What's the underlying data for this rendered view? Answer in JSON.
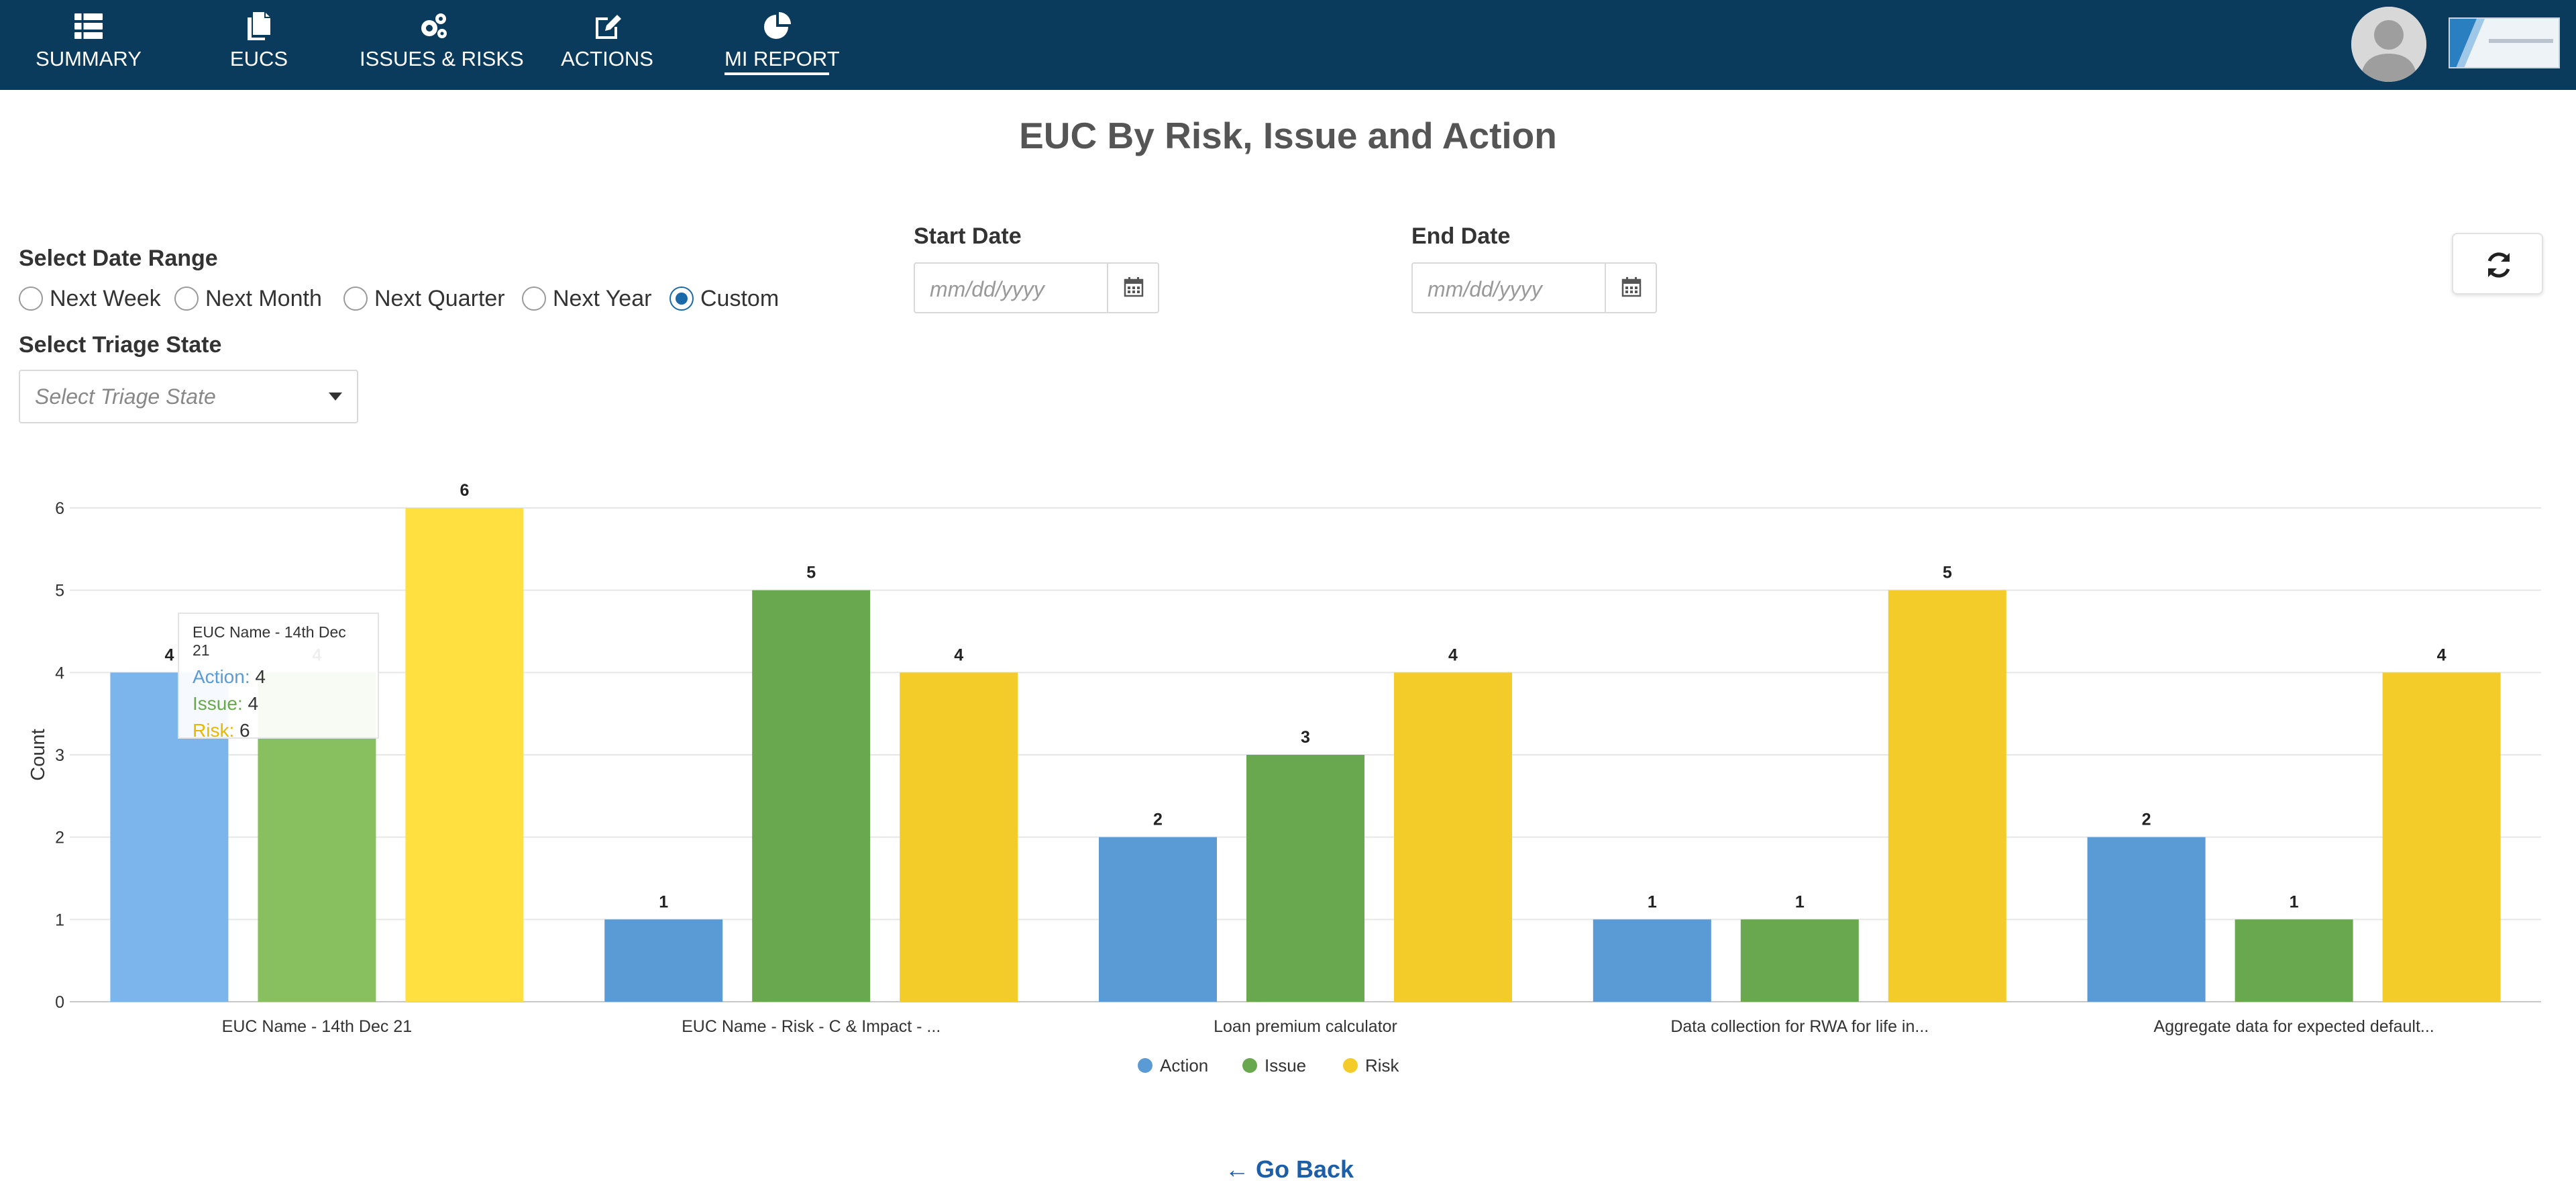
{
  "nav": {
    "items": [
      {
        "label": "SUMMARY",
        "icon": "list-icon"
      },
      {
        "label": "EUCS",
        "icon": "documents-icon"
      },
      {
        "label": "ISSUES & RISKS",
        "icon": "gears-icon"
      },
      {
        "label": "ACTIONS",
        "icon": "edit-icon"
      },
      {
        "label": "MI REPORT",
        "icon": "pie-chart-icon",
        "active": true
      }
    ]
  },
  "page": {
    "title": "EUC By Risk, Issue and Action"
  },
  "filters": {
    "date_range_label": "Select Date Range",
    "date_range_options": [
      "Next Week",
      "Next Month",
      "Next Quarter",
      "Next Year",
      "Custom"
    ],
    "date_range_selected": "Custom",
    "start_date_label": "Start Date",
    "start_date_placeholder": "mm/dd/yyyy",
    "end_date_label": "End Date",
    "end_date_placeholder": "mm/dd/yyyy",
    "triage_label": "Select Triage State",
    "triage_placeholder": "Select Triage State"
  },
  "colors": {
    "nav_bg": "#0a3a5c",
    "action": "#5b9bd5",
    "issue": "#6aa84f",
    "risk": "#f4cc2a",
    "action_highlight": "#7cb5ec",
    "issue_highlight": "#88c060",
    "risk_highlight": "#ffe040",
    "link": "#1d5ea8"
  },
  "chart_data": {
    "type": "bar",
    "categories": [
      "EUC Name - 14th Dec 21",
      "EUC Name - Risk - C & Impact - ...",
      "Loan premium calculator",
      "Data collection for RWA for life in...",
      "Aggregate data for expected default..."
    ],
    "series": [
      {
        "name": "Action",
        "values": [
          4,
          1,
          2,
          1,
          2
        ]
      },
      {
        "name": "Issue",
        "values": [
          4,
          5,
          3,
          1,
          1
        ]
      },
      {
        "name": "Risk",
        "values": [
          6,
          4,
          4,
          5,
          4
        ]
      }
    ],
    "ylabel": "Count",
    "xlabel": "",
    "ylim": [
      0,
      6
    ],
    "yticks": [
      "0",
      "1",
      "2",
      "3",
      "4",
      "5",
      "6"
    ],
    "grid": true,
    "legend": "bottom-center",
    "highlighted_category_index": 0
  },
  "tooltip": {
    "title": "EUC Name - 14th Dec 21",
    "rows": [
      {
        "key": "Action",
        "value": "4"
      },
      {
        "key": "Issue",
        "value": "4"
      },
      {
        "key": "Risk",
        "value": "6"
      }
    ]
  },
  "footer": {
    "go_back_label": "Go Back"
  }
}
